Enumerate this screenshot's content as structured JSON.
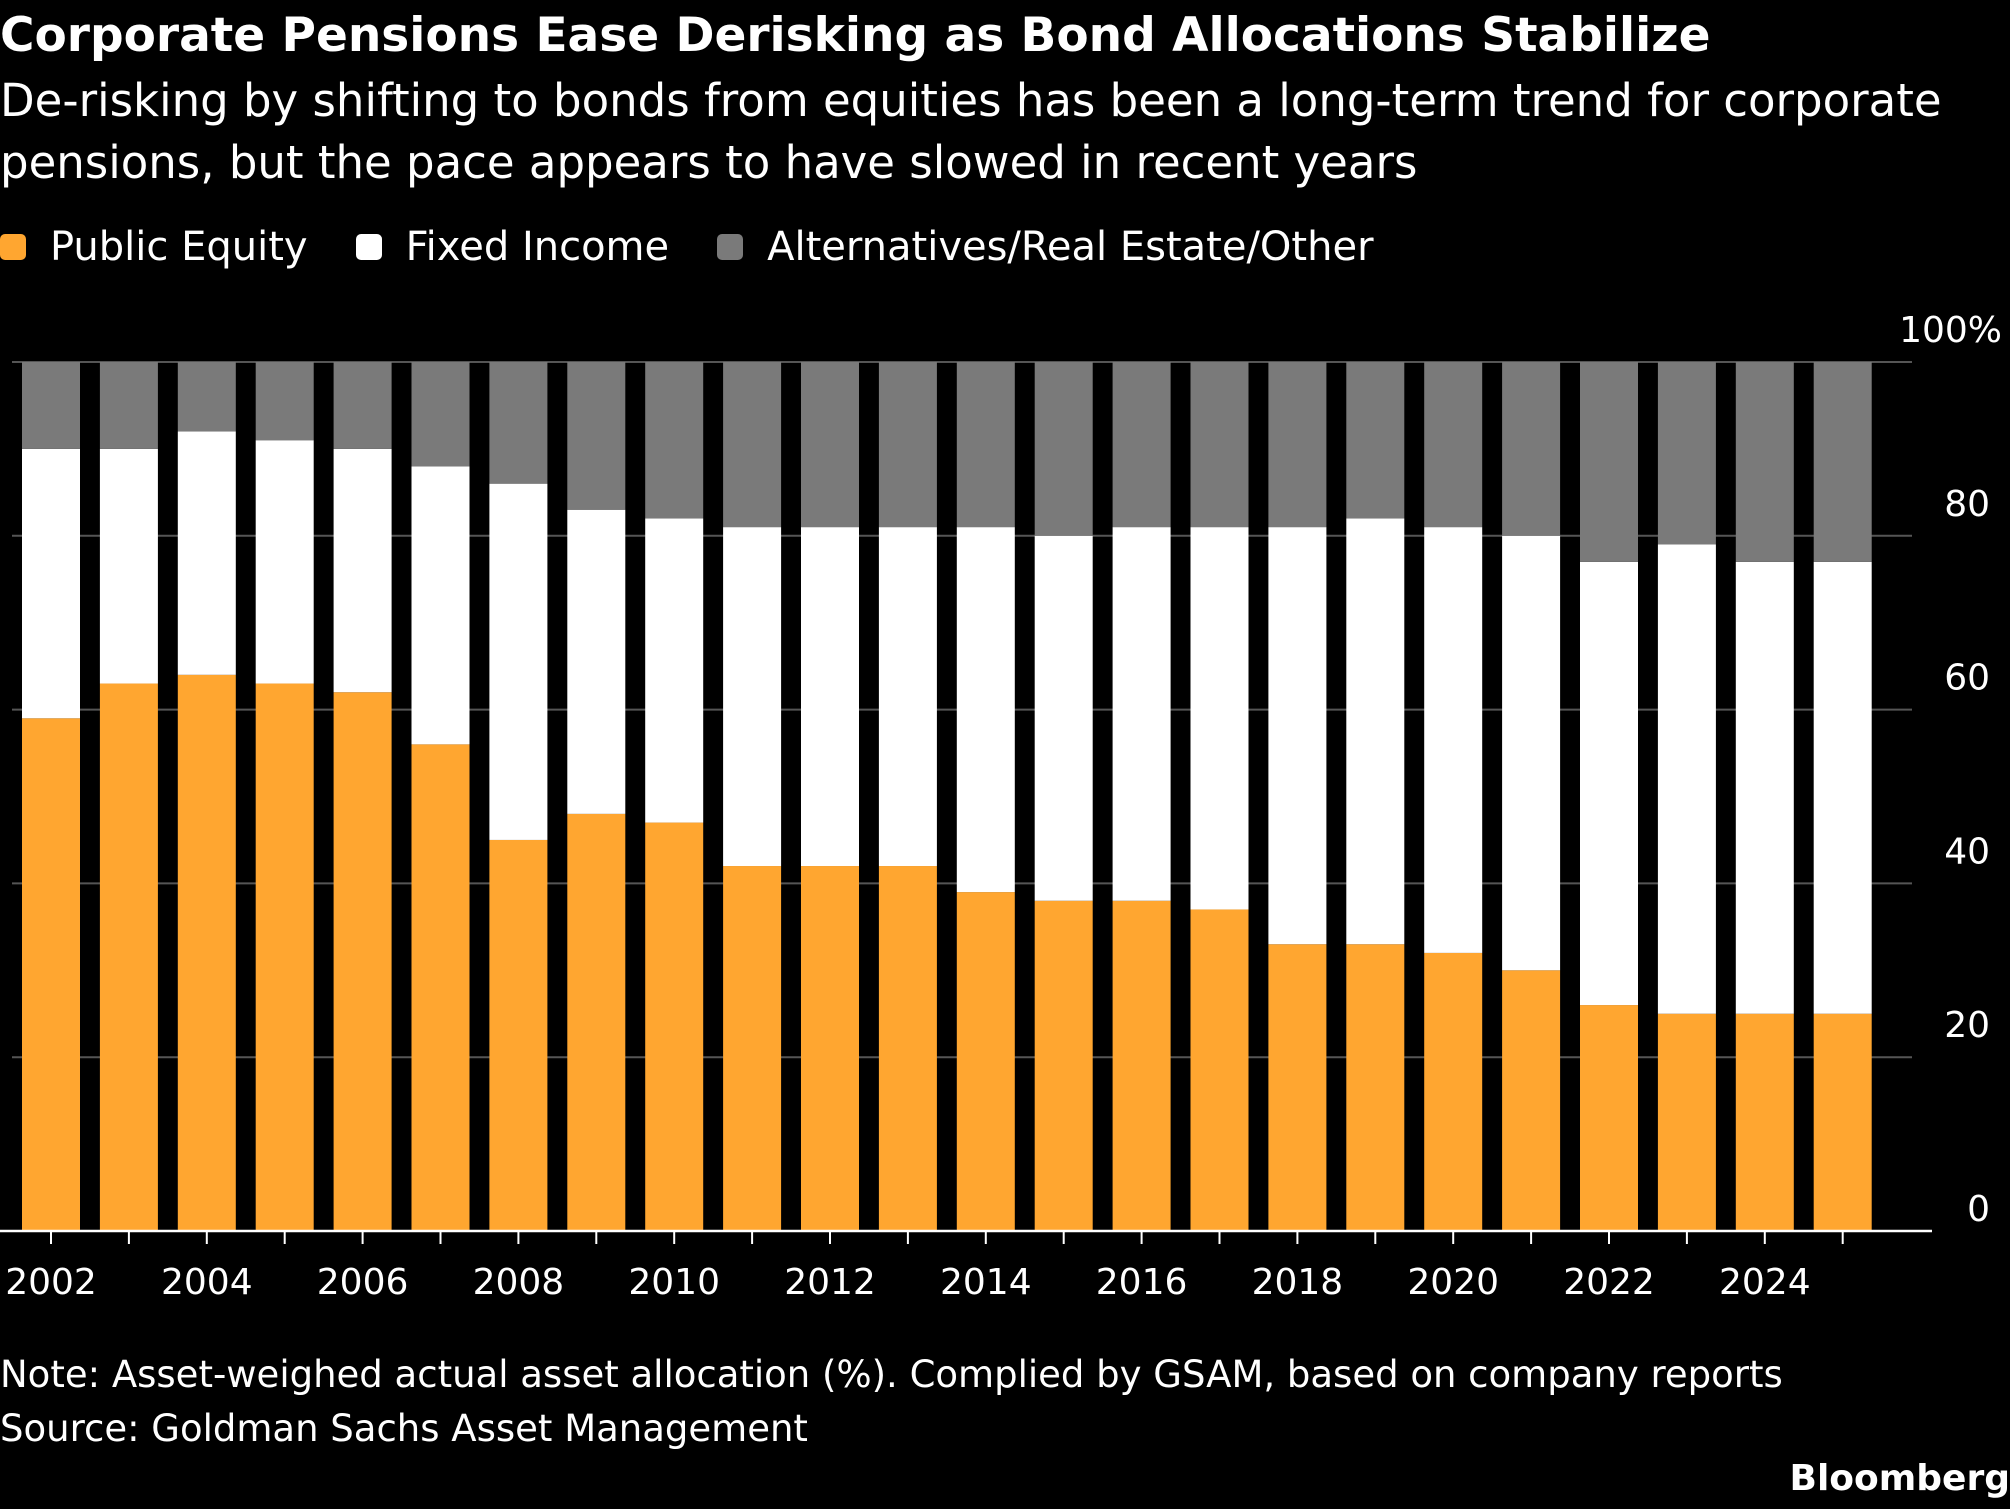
{
  "title": "Corporate Pensions Ease Derisking as Bond Allocations Stabilize",
  "subtitle": "De-risking by shifting to bonds from equities has been a long-term trend for corporate pensions, but the pace appears to have slowed in recent years",
  "note": "Note: Asset-weighed actual asset allocation (%). Complied by GSAM, based on company reports",
  "source": "Source: Goldman Sachs Asset Management",
  "brand": "Bloomberg",
  "colors": {
    "background": "#000000",
    "public_equity": "#ffa630",
    "fixed_income": "#ffffff",
    "alternatives": "#7a7a7a",
    "gridline": "#555555"
  },
  "chart_data": {
    "type": "bar",
    "stacked": true,
    "x": [
      2002,
      2003,
      2004,
      2005,
      2006,
      2007,
      2008,
      2009,
      2010,
      2011,
      2012,
      2013,
      2014,
      2015,
      2016,
      2017,
      2018,
      2019,
      2020,
      2021,
      2022,
      2023,
      2024,
      2025
    ],
    "x_tick_labels": [
      "2002",
      "2004",
      "2006",
      "2008",
      "2010",
      "2012",
      "2014",
      "2016",
      "2018",
      "2020",
      "2022",
      "2024"
    ],
    "y_tick_labels": [
      "0",
      "20",
      "40",
      "60",
      "80",
      "100%"
    ],
    "y_ticks": [
      0,
      20,
      40,
      60,
      80,
      100
    ],
    "ylim": [
      0,
      100
    ],
    "y_axis_side": "right",
    "grid": true,
    "legend_position": "top-left",
    "series": [
      {
        "name": "Public Equity",
        "color": "#ffa630",
        "values": [
          59,
          63,
          64,
          63,
          62,
          56,
          45,
          48,
          47,
          42,
          42,
          42,
          39,
          38,
          38,
          37,
          33,
          33,
          32,
          30,
          26,
          25,
          25,
          25
        ]
      },
      {
        "name": "Fixed Income",
        "color": "#ffffff",
        "values": [
          31,
          27,
          28,
          28,
          28,
          32,
          41,
          35,
          35,
          39,
          39,
          39,
          42,
          42,
          43,
          44,
          48,
          49,
          49,
          50,
          51,
          54,
          52,
          52
        ]
      },
      {
        "name": "Alternatives/Real Estate/Other",
        "color": "#7a7a7a",
        "values": [
          10,
          10,
          8,
          9,
          10,
          12,
          14,
          17,
          18,
          19,
          19,
          19,
          19,
          20,
          19,
          19,
          19,
          18,
          19,
          20,
          23,
          21,
          23,
          23
        ]
      }
    ]
  }
}
